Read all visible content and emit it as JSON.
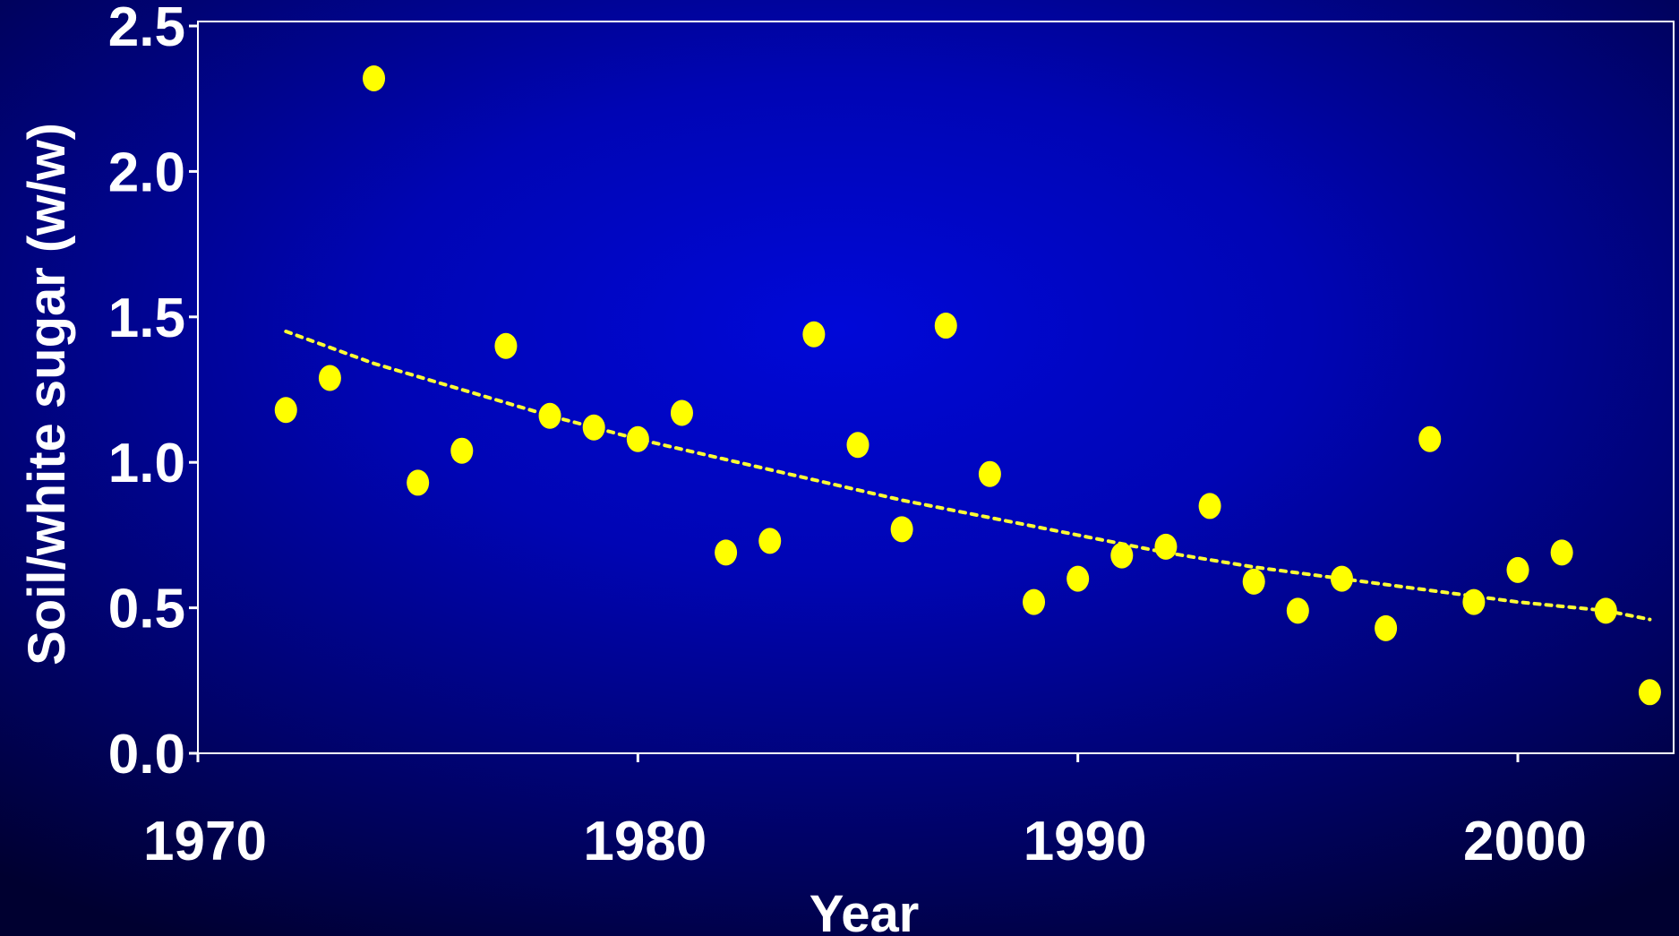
{
  "chart_data": {
    "type": "scatter",
    "title": "",
    "xlabel": "Year",
    "ylabel": "Soil/white sugar (w/w)",
    "xlim": [
      1970,
      2003.6
    ],
    "ylim": [
      0,
      2.5
    ],
    "x_ticks": [
      "1970",
      "1980",
      "1990",
      "2000"
    ],
    "x_tick_values": [
      1970,
      1980,
      1990,
      2000
    ],
    "y_ticks": [
      "0.0",
      "0.5",
      "1.0",
      "1.5",
      "2.0",
      "2.5"
    ],
    "y_tick_values": [
      0,
      0.5,
      1.0,
      1.5,
      2.0,
      2.5
    ],
    "grid": false,
    "series": [
      {
        "kind": "points",
        "x": [
          1972,
          1973,
          1974,
          1975,
          1976,
          1977,
          1978,
          1979,
          1980,
          1981,
          1982,
          1983,
          1984,
          1985,
          1986,
          1987,
          1988,
          1989,
          1990,
          1991,
          1992,
          1993,
          1994,
          1995,
          1996,
          1997,
          1998,
          1999,
          2000,
          2001,
          2002,
          2003
        ],
        "y": [
          1.18,
          1.29,
          2.32,
          0.93,
          1.04,
          1.4,
          1.16,
          1.12,
          1.08,
          1.17,
          0.69,
          0.73,
          1.44,
          1.06,
          0.77,
          1.47,
          0.96,
          0.52,
          0.6,
          0.68,
          0.71,
          0.85,
          0.59,
          0.49,
          0.6,
          0.43,
          1.08,
          0.52,
          0.63,
          0.69,
          0.49,
          0.21
        ]
      },
      {
        "kind": "trend",
        "x": [
          1972,
          1974,
          1976,
          1978,
          1980,
          1982,
          1984,
          1986,
          1988,
          1990,
          1992,
          1994,
          1996,
          1998,
          2000,
          2002,
          2003
        ],
        "y": [
          1.45,
          1.34,
          1.25,
          1.16,
          1.08,
          1.01,
          0.94,
          0.87,
          0.81,
          0.75,
          0.69,
          0.64,
          0.6,
          0.56,
          0.52,
          0.49,
          0.46
        ]
      }
    ],
    "colors": {
      "points": "#ffff00",
      "trend": "#ffff33",
      "axes": "#ffffff"
    }
  }
}
